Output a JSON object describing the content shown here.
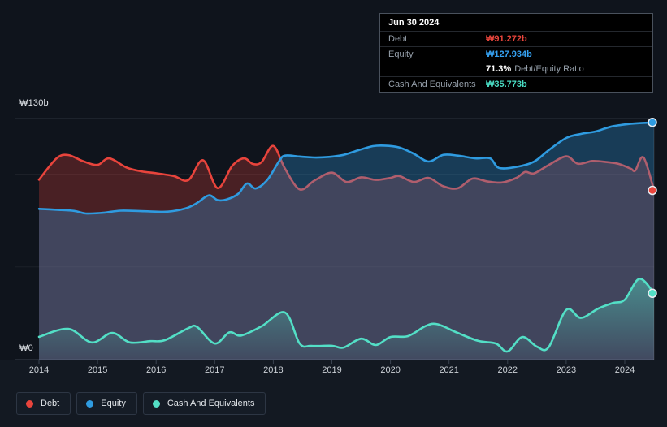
{
  "tooltip": {
    "date": "Jun 30 2024",
    "debt_label": "Debt",
    "debt_value": "₩91.272b",
    "debt_color": "#e8453c",
    "equity_label": "Equity",
    "equity_value": "₩127.934b",
    "equity_color": "#35a0f0",
    "ratio_percent": "71.3%",
    "ratio_label": "Debt/Equity Ratio",
    "cash_label": "Cash And Equivalents",
    "cash_value": "₩35.773b",
    "cash_color": "#49dcc3"
  },
  "chart_data": {
    "type": "area",
    "title": "Debt, Equity and Cash history",
    "unit": "KRW billions (₩b)",
    "legend_position": "bottom-left",
    "grid": true,
    "x_axis": {
      "ticks": [
        2014,
        2015,
        2016,
        2017,
        2018,
        2019,
        2020,
        2021,
        2022,
        2023,
        2024
      ],
      "range": [
        2014.0,
        2024.5
      ]
    },
    "y_axis": {
      "top_label": "₩130b",
      "zero_label": "₩0",
      "range_billions": [
        0,
        130
      ],
      "gridlines_billions": [
        0,
        50,
        100,
        130
      ]
    },
    "series": [
      {
        "name": "Debt",
        "color": "#e8443c",
        "fill": "rgba(232,68,60,0.27)",
        "end_value_label": "₩91.272b",
        "points": [
          [
            2014.0,
            97.0
          ],
          [
            2014.3,
            108.5
          ],
          [
            2014.5,
            110.3
          ],
          [
            2014.75,
            107.0
          ],
          [
            2015.0,
            105.0
          ],
          [
            2015.2,
            108.5
          ],
          [
            2015.5,
            103.5
          ],
          [
            2015.75,
            101.5
          ],
          [
            2016.0,
            100.5
          ],
          [
            2016.3,
            99.0
          ],
          [
            2016.55,
            96.8
          ],
          [
            2016.8,
            107.5
          ],
          [
            2017.05,
            92.5
          ],
          [
            2017.3,
            104.5
          ],
          [
            2017.5,
            108.5
          ],
          [
            2017.65,
            105.5
          ],
          [
            2017.8,
            106.5
          ],
          [
            2018.0,
            115.2
          ],
          [
            2018.2,
            103.0
          ],
          [
            2018.45,
            91.8
          ],
          [
            2018.7,
            96.5
          ],
          [
            2019.0,
            100.8
          ],
          [
            2019.25,
            95.8
          ],
          [
            2019.5,
            98.3
          ],
          [
            2019.75,
            96.9
          ],
          [
            2020.0,
            98.0
          ],
          [
            2020.15,
            99.0
          ],
          [
            2020.4,
            95.8
          ],
          [
            2020.65,
            98.0
          ],
          [
            2020.9,
            93.5
          ],
          [
            2021.15,
            92.4
          ],
          [
            2021.4,
            97.6
          ],
          [
            2021.65,
            96.1
          ],
          [
            2021.9,
            95.5
          ],
          [
            2022.15,
            98.0
          ],
          [
            2022.3,
            101.2
          ],
          [
            2022.45,
            100.4
          ],
          [
            2022.7,
            104.9
          ],
          [
            2023.0,
            109.6
          ],
          [
            2023.2,
            105.6
          ],
          [
            2023.45,
            107.1
          ],
          [
            2023.7,
            106.5
          ],
          [
            2023.9,
            105.5
          ],
          [
            2024.1,
            103.0
          ],
          [
            2024.18,
            102.0
          ],
          [
            2024.32,
            109.0
          ],
          [
            2024.5,
            91.272
          ]
        ]
      },
      {
        "name": "Equity",
        "color": "#2f9be0",
        "fill": "rgba(47,155,224,0.30)",
        "end_value_label": "₩127.934b",
        "points": [
          [
            2014.0,
            81.3
          ],
          [
            2014.3,
            80.8
          ],
          [
            2014.6,
            80.2
          ],
          [
            2014.8,
            78.8
          ],
          [
            2015.1,
            79.2
          ],
          [
            2015.4,
            80.3
          ],
          [
            2015.8,
            80.0
          ],
          [
            2016.2,
            79.8
          ],
          [
            2016.5,
            81.5
          ],
          [
            2016.7,
            84.5
          ],
          [
            2016.9,
            88.6
          ],
          [
            2017.05,
            86.0
          ],
          [
            2017.2,
            86.3
          ],
          [
            2017.4,
            89.4
          ],
          [
            2017.55,
            95.0
          ],
          [
            2017.7,
            92.3
          ],
          [
            2017.9,
            97.0
          ],
          [
            2018.1,
            107.0
          ],
          [
            2018.2,
            110.0
          ],
          [
            2018.45,
            109.5
          ],
          [
            2018.7,
            109.0
          ],
          [
            2018.95,
            109.3
          ],
          [
            2019.2,
            110.4
          ],
          [
            2019.45,
            112.9
          ],
          [
            2019.7,
            115.1
          ],
          [
            2019.9,
            115.4
          ],
          [
            2020.15,
            114.4
          ],
          [
            2020.4,
            111.0
          ],
          [
            2020.65,
            106.8
          ],
          [
            2020.9,
            110.4
          ],
          [
            2021.15,
            110.0
          ],
          [
            2021.45,
            108.5
          ],
          [
            2021.7,
            108.5
          ],
          [
            2021.85,
            103.4
          ],
          [
            2022.15,
            103.9
          ],
          [
            2022.45,
            106.7
          ],
          [
            2022.7,
            112.9
          ],
          [
            2023.0,
            119.5
          ],
          [
            2023.25,
            121.7
          ],
          [
            2023.5,
            123.0
          ],
          [
            2023.75,
            125.5
          ],
          [
            2024.0,
            126.8
          ],
          [
            2024.25,
            127.5
          ],
          [
            2024.5,
            127.934
          ]
        ]
      },
      {
        "name": "Cash And Equivalents",
        "color": "#53dfc6",
        "fill": "gradient",
        "end_value_label": "₩35.773b",
        "points": [
          [
            2014.0,
            12.3
          ],
          [
            2014.5,
            16.6
          ],
          [
            2014.9,
            9.3
          ],
          [
            2015.25,
            14.4
          ],
          [
            2015.55,
            9.3
          ],
          [
            2015.9,
            10.0
          ],
          [
            2016.15,
            10.5
          ],
          [
            2016.55,
            17.0
          ],
          [
            2016.7,
            17.6
          ],
          [
            2017.0,
            8.7
          ],
          [
            2017.25,
            14.7
          ],
          [
            2017.45,
            13.0
          ],
          [
            2017.8,
            18.0
          ],
          [
            2018.2,
            25.4
          ],
          [
            2018.45,
            8.7
          ],
          [
            2018.65,
            7.4
          ],
          [
            2019.0,
            7.5
          ],
          [
            2019.2,
            6.5
          ],
          [
            2019.5,
            11.3
          ],
          [
            2019.75,
            7.9
          ],
          [
            2020.0,
            12.2
          ],
          [
            2020.3,
            12.7
          ],
          [
            2020.6,
            18.1
          ],
          [
            2020.8,
            19.1
          ],
          [
            2021.15,
            14.4
          ],
          [
            2021.5,
            10.1
          ],
          [
            2021.8,
            8.7
          ],
          [
            2022.0,
            4.4
          ],
          [
            2022.25,
            12.2
          ],
          [
            2022.5,
            7.0
          ],
          [
            2022.7,
            6.7
          ],
          [
            2023.0,
            26.8
          ],
          [
            2023.25,
            22.5
          ],
          [
            2023.55,
            27.6
          ],
          [
            2023.8,
            30.6
          ],
          [
            2024.0,
            32.3
          ],
          [
            2024.25,
            43.6
          ],
          [
            2024.5,
            35.773
          ]
        ]
      }
    ]
  }
}
